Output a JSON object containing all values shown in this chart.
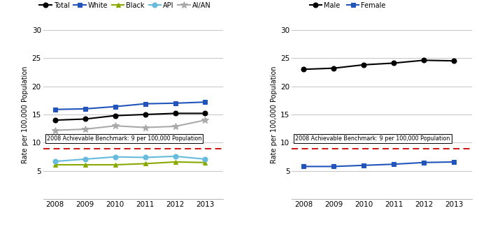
{
  "years": [
    2008,
    2009,
    2010,
    2011,
    2012,
    2013
  ],
  "left": {
    "Total": [
      14.0,
      14.2,
      14.8,
      15.0,
      15.2,
      15.2
    ],
    "White": [
      15.9,
      16.0,
      16.4,
      16.9,
      17.0,
      17.2
    ],
    "Black": [
      6.1,
      6.1,
      6.1,
      6.3,
      6.6,
      6.5
    ],
    "API": [
      6.7,
      7.1,
      7.5,
      7.4,
      7.6,
      7.1
    ],
    "AI/AN": [
      12.2,
      12.4,
      13.0,
      12.7,
      12.9,
      14.0
    ]
  },
  "right": {
    "Male": [
      23.0,
      23.2,
      23.8,
      24.1,
      24.6,
      24.5
    ],
    "Female": [
      5.8,
      5.8,
      6.0,
      6.2,
      6.5,
      6.6
    ]
  },
  "benchmark": 9,
  "benchmark_label": "2008 Achievable Benchmark: 9 per 100,000 Population",
  "ylabel": "Rate per 100,000 Population",
  "ylim": [
    0,
    30
  ],
  "yticks": [
    0,
    5,
    10,
    15,
    20,
    25,
    30
  ],
  "colors": {
    "Total": "#000000",
    "White": "#2255bb",
    "Black": "#88aa00",
    "API": "#66bbdd",
    "AI/AN": "#aaaaaa",
    "Male": "#000000",
    "Female": "#2255bb"
  },
  "markers": {
    "Total": "o",
    "White": "s",
    "Black": "^",
    "API": "o",
    "AI/AN": "*",
    "Male": "o",
    "Female": "s"
  },
  "benchmark_color": "#cc0000",
  "grid_color": "#bbbbbb"
}
